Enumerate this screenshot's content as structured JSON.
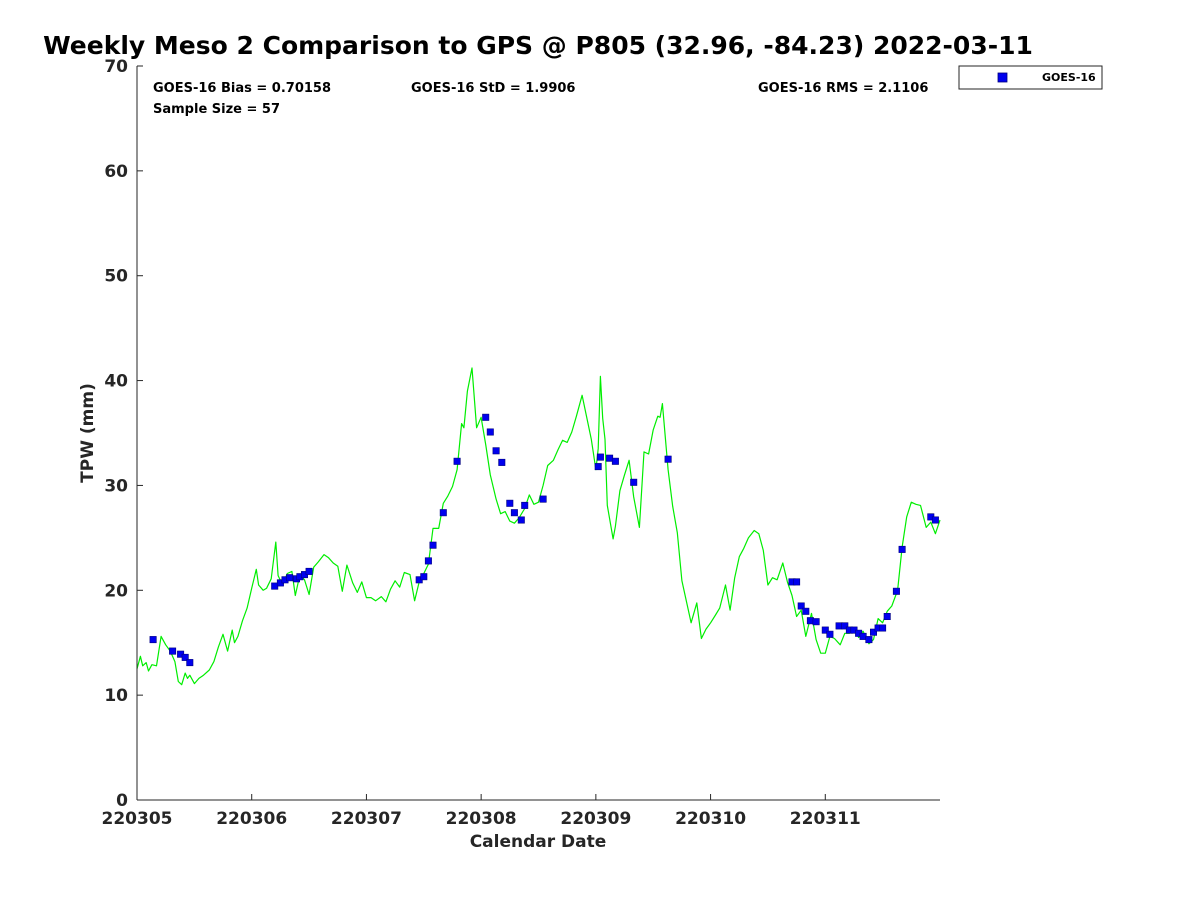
{
  "chart_data": {
    "type": "scatter",
    "title": "Weekly Meso 2 Comparison to GPS @ P805 (32.96, -84.23) 2022-03-11",
    "xlabel": "Calendar Date",
    "ylabel": "TPW (mm)",
    "xlim": [
      220305,
      220312
    ],
    "ylim": [
      0,
      70
    ],
    "x_tick_labels": [
      "220305",
      "220306",
      "220307",
      "220308",
      "220309",
      "220310",
      "220311"
    ],
    "y_ticks": [
      0,
      10,
      20,
      30,
      40,
      50,
      60,
      70
    ],
    "grid": false,
    "legend": {
      "position": "top-right",
      "entries": [
        "GOES-16"
      ]
    },
    "stats": {
      "bias": "GOES-16 Bias = 0.70158",
      "std": "GOES-16 StD = 1.9906",
      "rms": "GOES-16 RMS = 2.1106",
      "sample_size": "Sample Size = 57"
    },
    "colors": {
      "gps_line": "#00ee00",
      "goes_marker": "#0000ee",
      "marker_edge": "#000080"
    },
    "series": [
      {
        "name": "GOES-16",
        "kind": "markers",
        "points": [
          [
            220305.14,
            15.3
          ],
          [
            220305.31,
            14.2
          ],
          [
            220305.38,
            13.9
          ],
          [
            220305.42,
            13.6
          ],
          [
            220305.46,
            13.1
          ],
          [
            220306.2,
            20.4
          ],
          [
            220306.25,
            20.7
          ],
          [
            220306.29,
            21.0
          ],
          [
            220306.33,
            21.2
          ],
          [
            220306.39,
            21.1
          ],
          [
            220306.42,
            21.3
          ],
          [
            220306.46,
            21.5
          ],
          [
            220306.5,
            21.8
          ],
          [
            220307.46,
            21.0
          ],
          [
            220307.5,
            21.3
          ],
          [
            220307.54,
            22.8
          ],
          [
            220307.58,
            24.3
          ],
          [
            220307.67,
            27.4
          ],
          [
            220307.79,
            32.3
          ],
          [
            220308.04,
            36.5
          ],
          [
            220308.08,
            35.1
          ],
          [
            220308.13,
            33.3
          ],
          [
            220308.18,
            32.2
          ],
          [
            220308.25,
            28.3
          ],
          [
            220308.29,
            27.4
          ],
          [
            220308.35,
            26.7
          ],
          [
            220308.38,
            28.1
          ],
          [
            220308.54,
            28.7
          ],
          [
            220309.02,
            31.8
          ],
          [
            220309.04,
            32.7
          ],
          [
            220309.12,
            32.6
          ],
          [
            220309.17,
            32.3
          ],
          [
            220309.33,
            30.3
          ],
          [
            220309.63,
            32.5
          ],
          [
            220310.71,
            20.8
          ],
          [
            220310.75,
            20.8
          ],
          [
            220310.79,
            18.5
          ],
          [
            220310.83,
            18.0
          ],
          [
            220310.87,
            17.1
          ],
          [
            220310.92,
            17.0
          ],
          [
            220311.0,
            16.2
          ],
          [
            220311.04,
            15.8
          ],
          [
            220311.12,
            16.6
          ],
          [
            220311.17,
            16.6
          ],
          [
            220311.21,
            16.2
          ],
          [
            220311.25,
            16.2
          ],
          [
            220311.29,
            15.9
          ],
          [
            220311.33,
            15.6
          ],
          [
            220311.38,
            15.3
          ],
          [
            220311.42,
            16.0
          ],
          [
            220311.46,
            16.4
          ],
          [
            220311.5,
            16.4
          ],
          [
            220311.54,
            17.5
          ],
          [
            220311.62,
            19.9
          ],
          [
            220311.67,
            23.9
          ],
          [
            220311.92,
            27.0
          ],
          [
            220311.96,
            26.7
          ]
        ]
      },
      {
        "name": "",
        "kind": "line",
        "points": [
          [
            220305.0,
            12.5
          ],
          [
            220305.03,
            13.7
          ],
          [
            220305.05,
            12.8
          ],
          [
            220305.08,
            13.1
          ],
          [
            220305.1,
            12.3
          ],
          [
            220305.13,
            12.9
          ],
          [
            220305.17,
            12.8
          ],
          [
            220305.21,
            15.6
          ],
          [
            220305.25,
            14.8
          ],
          [
            220305.29,
            14.2
          ],
          [
            220305.33,
            13.2
          ],
          [
            220305.36,
            11.3
          ],
          [
            220305.39,
            11.0
          ],
          [
            220305.42,
            12.1
          ],
          [
            220305.44,
            11.6
          ],
          [
            220305.46,
            11.9
          ],
          [
            220305.5,
            11.1
          ],
          [
            220305.54,
            11.6
          ],
          [
            220305.58,
            11.9
          ],
          [
            220305.63,
            12.4
          ],
          [
            220305.67,
            13.2
          ],
          [
            220305.71,
            14.6
          ],
          [
            220305.75,
            15.8
          ],
          [
            220305.79,
            14.2
          ],
          [
            220305.83,
            16.2
          ],
          [
            220305.85,
            15.0
          ],
          [
            220305.88,
            15.6
          ],
          [
            220305.92,
            17.1
          ],
          [
            220305.96,
            18.3
          ],
          [
            220306.0,
            20.2
          ],
          [
            220306.04,
            22.0
          ],
          [
            220306.06,
            20.5
          ],
          [
            220306.1,
            20.0
          ],
          [
            220306.13,
            20.2
          ],
          [
            220306.17,
            21.1
          ],
          [
            220306.21,
            24.6
          ],
          [
            220306.23,
            21.4
          ],
          [
            220306.27,
            20.5
          ],
          [
            220306.31,
            21.6
          ],
          [
            220306.35,
            21.8
          ],
          [
            220306.38,
            19.5
          ],
          [
            220306.42,
            21.5
          ],
          [
            220306.46,
            21.0
          ],
          [
            220306.5,
            19.6
          ],
          [
            220306.54,
            22.2
          ],
          [
            220306.58,
            22.7
          ],
          [
            220306.63,
            23.4
          ],
          [
            220306.67,
            23.1
          ],
          [
            220306.71,
            22.6
          ],
          [
            220306.75,
            22.3
          ],
          [
            220306.79,
            19.9
          ],
          [
            220306.83,
            22.4
          ],
          [
            220306.88,
            20.7
          ],
          [
            220306.92,
            19.8
          ],
          [
            220306.96,
            20.8
          ],
          [
            220307.0,
            19.3
          ],
          [
            220307.04,
            19.3
          ],
          [
            220307.08,
            19.0
          ],
          [
            220307.13,
            19.4
          ],
          [
            220307.17,
            18.9
          ],
          [
            220307.21,
            20.1
          ],
          [
            220307.25,
            20.9
          ],
          [
            220307.29,
            20.3
          ],
          [
            220307.33,
            21.7
          ],
          [
            220307.38,
            21.5
          ],
          [
            220307.42,
            19.0
          ],
          [
            220307.46,
            20.8
          ],
          [
            220307.5,
            21.6
          ],
          [
            220307.54,
            22.5
          ],
          [
            220307.58,
            25.9
          ],
          [
            220307.63,
            25.9
          ],
          [
            220307.67,
            28.3
          ],
          [
            220307.71,
            29.0
          ],
          [
            220307.75,
            29.9
          ],
          [
            220307.79,
            31.5
          ],
          [
            220307.83,
            35.9
          ],
          [
            220307.85,
            35.5
          ],
          [
            220307.88,
            39.0
          ],
          [
            220307.92,
            41.2
          ],
          [
            220307.96,
            35.5
          ],
          [
            220308.0,
            36.5
          ],
          [
            220308.04,
            33.9
          ],
          [
            220308.08,
            31.0
          ],
          [
            220308.13,
            28.7
          ],
          [
            220308.17,
            27.3
          ],
          [
            220308.21,
            27.5
          ],
          [
            220308.25,
            26.6
          ],
          [
            220308.29,
            26.4
          ],
          [
            220308.33,
            26.9
          ],
          [
            220308.38,
            27.8
          ],
          [
            220308.42,
            29.1
          ],
          [
            220308.46,
            28.2
          ],
          [
            220308.5,
            28.4
          ],
          [
            220308.54,
            30.0
          ],
          [
            220308.58,
            31.9
          ],
          [
            220308.63,
            32.4
          ],
          [
            220308.67,
            33.4
          ],
          [
            220308.71,
            34.3
          ],
          [
            220308.75,
            34.1
          ],
          [
            220308.79,
            35.1
          ],
          [
            220308.83,
            36.6
          ],
          [
            220308.88,
            38.6
          ],
          [
            220308.92,
            36.5
          ],
          [
            220308.96,
            34.4
          ],
          [
            220309.0,
            31.5
          ],
          [
            220309.02,
            33.5
          ],
          [
            220309.04,
            40.4
          ],
          [
            220309.06,
            36.4
          ],
          [
            220309.08,
            34.4
          ],
          [
            220309.1,
            28.1
          ],
          [
            220309.15,
            24.9
          ],
          [
            220309.17,
            26.1
          ],
          [
            220309.21,
            29.5
          ],
          [
            220309.25,
            31.0
          ],
          [
            220309.29,
            32.4
          ],
          [
            220309.33,
            28.9
          ],
          [
            220309.38,
            26.0
          ],
          [
            220309.42,
            33.2
          ],
          [
            220309.46,
            33.0
          ],
          [
            220309.5,
            35.3
          ],
          [
            220309.54,
            36.6
          ],
          [
            220309.56,
            36.5
          ],
          [
            220309.58,
            37.8
          ],
          [
            220309.63,
            31.5
          ],
          [
            220309.67,
            28.0
          ],
          [
            220309.71,
            25.5
          ],
          [
            220309.75,
            20.9
          ],
          [
            220309.79,
            18.9
          ],
          [
            220309.83,
            16.9
          ],
          [
            220309.88,
            18.8
          ],
          [
            220309.92,
            15.4
          ],
          [
            220309.96,
            16.3
          ],
          [
            220310.0,
            16.9
          ],
          [
            220310.04,
            17.6
          ],
          [
            220310.08,
            18.3
          ],
          [
            220310.13,
            20.5
          ],
          [
            220310.17,
            18.1
          ],
          [
            220310.21,
            21.2
          ],
          [
            220310.25,
            23.2
          ],
          [
            220310.29,
            24.0
          ],
          [
            220310.33,
            25.0
          ],
          [
            220310.38,
            25.7
          ],
          [
            220310.42,
            25.4
          ],
          [
            220310.46,
            23.8
          ],
          [
            220310.5,
            20.5
          ],
          [
            220310.54,
            21.2
          ],
          [
            220310.58,
            21.0
          ],
          [
            220310.63,
            22.6
          ],
          [
            220310.67,
            20.8
          ],
          [
            220310.71,
            19.5
          ],
          [
            220310.75,
            17.5
          ],
          [
            220310.79,
            18.1
          ],
          [
            220310.83,
            15.6
          ],
          [
            220310.88,
            17.8
          ],
          [
            220310.92,
            15.3
          ],
          [
            220310.96,
            14.0
          ],
          [
            220311.0,
            14.0
          ],
          [
            220311.04,
            15.6
          ],
          [
            220311.08,
            15.4
          ],
          [
            220311.13,
            14.8
          ],
          [
            220311.17,
            15.9
          ],
          [
            220311.21,
            15.9
          ],
          [
            220311.25,
            16.4
          ],
          [
            220311.29,
            15.5
          ],
          [
            220311.33,
            16.1
          ],
          [
            220311.38,
            14.9
          ],
          [
            220311.42,
            15.3
          ],
          [
            220311.46,
            17.3
          ],
          [
            220311.5,
            16.9
          ],
          [
            220311.54,
            18.0
          ],
          [
            220311.58,
            18.5
          ],
          [
            220311.63,
            20.0
          ],
          [
            220311.67,
            24.1
          ],
          [
            220311.71,
            27.0
          ],
          [
            220311.75,
            28.4
          ],
          [
            220311.79,
            28.2
          ],
          [
            220311.83,
            28.1
          ],
          [
            220311.88,
            26.0
          ],
          [
            220311.92,
            26.5
          ],
          [
            220311.96,
            25.4
          ],
          [
            220312.0,
            26.7
          ]
        ]
      }
    ]
  }
}
